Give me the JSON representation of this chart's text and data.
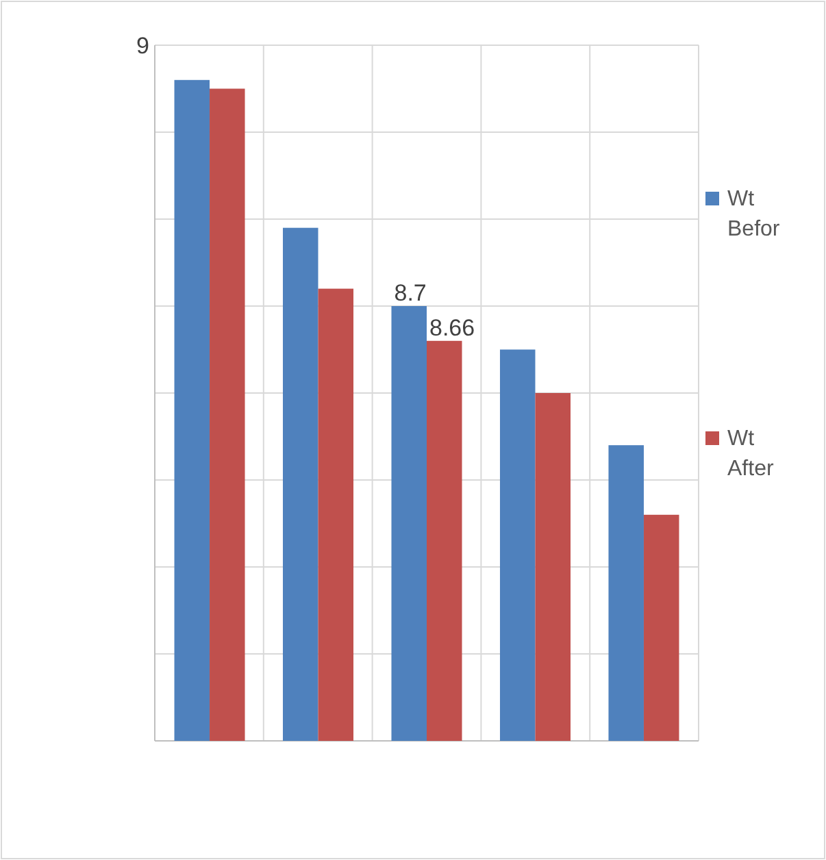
{
  "chart_data": {
    "type": "bar",
    "categories": [
      null,
      null,
      null,
      null,
      null
    ],
    "series": [
      {
        "name": "Wt Befor",
        "color": "#4f81bd",
        "values": [
          8.96,
          8.79,
          8.7,
          8.65,
          8.54
        ],
        "value_labels": [
          null,
          null,
          "8.7",
          null,
          null
        ]
      },
      {
        "name": "Wt After",
        "color": "#c0504d",
        "values": [
          8.95,
          8.72,
          8.66,
          8.6,
          8.46
        ],
        "value_labels": [
          null,
          null,
          "8.66",
          null,
          null
        ]
      }
    ],
    "ylim": [
      8.2,
      9
    ],
    "yticks": [
      {
        "value": 8.2,
        "label": null
      },
      {
        "value": 8.3,
        "label": null
      },
      {
        "value": 8.4,
        "label": null
      },
      {
        "value": 8.5,
        "label": null
      },
      {
        "value": 8.6,
        "label": null
      },
      {
        "value": 8.7,
        "label": null
      },
      {
        "value": 8.8,
        "label": null
      },
      {
        "value": 8.9,
        "label": null
      },
      {
        "value": 9,
        "label": null
      }
    ],
    "annotations": [
      "9"
    ],
    "grid": true,
    "legend": "right"
  }
}
